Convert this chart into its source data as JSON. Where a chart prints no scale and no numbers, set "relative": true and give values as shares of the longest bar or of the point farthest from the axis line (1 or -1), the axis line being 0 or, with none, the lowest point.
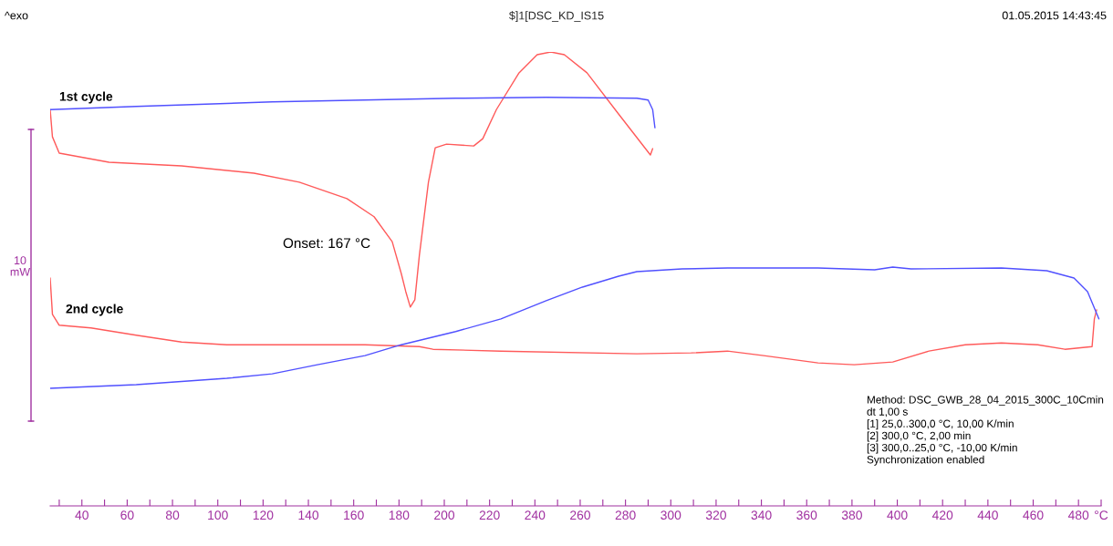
{
  "chart_data": {
    "type": "line",
    "title": "$]1[DSC_KD_IS15",
    "relative": true,
    "grid": false,
    "legend": false,
    "marker": "none",
    "line_style": "solid",
    "xlim": [
      26,
      490
    ],
    "xticks": [
      {
        "value": 30,
        "label": null
      },
      40,
      {
        "value": 50,
        "label": null
      },
      60,
      {
        "value": 70,
        "label": null
      },
      80,
      {
        "value": 90,
        "label": null
      },
      100,
      {
        "value": 110,
        "label": null
      },
      120,
      {
        "value": 130,
        "label": null
      },
      140,
      {
        "value": 150,
        "label": null
      },
      160,
      {
        "value": 170,
        "label": null
      },
      180,
      {
        "value": 190,
        "label": null
      },
      200,
      {
        "value": 210,
        "label": null
      },
      220,
      {
        "value": 230,
        "label": null
      },
      240,
      {
        "value": 250,
        "label": null
      },
      260,
      {
        "value": 270,
        "label": null
      },
      280,
      {
        "value": 290,
        "label": null
      },
      300,
      {
        "value": 310,
        "label": null
      },
      320,
      {
        "value": 330,
        "label": null
      },
      340,
      {
        "value": 350,
        "label": null
      },
      360,
      {
        "value": 370,
        "label": null
      },
      380,
      {
        "value": 390,
        "label": null
      },
      400,
      {
        "value": 410,
        "label": null
      },
      420,
      {
        "value": 430,
        "label": null
      },
      440,
      {
        "value": 450,
        "label": null
      },
      460,
      {
        "value": 470,
        "label": null
      },
      480,
      {
        "value": 490,
        "label": "°C"
      }
    ],
    "tick_labels": "x",
    "series": [
      {
        "color": "#ff5a5a",
        "x": [
          26,
          27,
          30,
          52,
          84,
          116,
          136,
          157,
          169,
          177,
          181,
          183,
          185,
          187,
          189,
          193,
          196,
          201,
          213,
          217,
          223,
          233,
          241,
          247,
          253,
          263,
          277,
          291,
          292
        ],
        "values": [
          0.873,
          0.813,
          0.777,
          0.757,
          0.749,
          0.733,
          0.713,
          0.677,
          0.637,
          0.582,
          0.512,
          0.472,
          0.438,
          0.454,
          0.552,
          0.713,
          0.789,
          0.797,
          0.793,
          0.809,
          0.873,
          0.954,
          0.994,
          1,
          0.994,
          0.954,
          0.863,
          0.773,
          0.787
        ]
      },
      {
        "color": "#5050ff",
        "x": [
          293,
          292,
          290,
          285,
          245,
          205,
          124,
          64,
          26
        ],
        "values": [
          0.833,
          0.873,
          0.894,
          0.898,
          0.9,
          0.898,
          0.89,
          0.88,
          0.873
        ]
      },
      {
        "color": "#ff5a5a",
        "x": [
          26,
          27,
          30,
          44,
          64,
          84,
          104,
          165,
          189,
          195,
          225,
          285,
          309,
          325,
          341,
          365,
          381,
          398,
          414,
          430,
          446,
          462,
          474,
          486,
          487,
          488
        ],
        "values": [
          0.502,
          0.422,
          0.398,
          0.392,
          0.376,
          0.361,
          0.355,
          0.355,
          0.351,
          0.345,
          0.341,
          0.335,
          0.337,
          0.341,
          0.331,
          0.315,
          0.311,
          0.317,
          0.341,
          0.355,
          0.359,
          0.355,
          0.345,
          0.351,
          0.412,
          0.432
        ]
      },
      {
        "color": "#5050ff",
        "x": [
          489,
          484,
          478,
          466,
          446,
          406,
          398,
          390,
          365,
          325,
          305,
          285,
          277,
          261,
          245,
          225,
          205,
          181,
          165,
          144,
          124,
          104,
          64,
          26
        ],
        "values": [
          0.412,
          0.472,
          0.502,
          0.518,
          0.524,
          0.522,
          0.526,
          0.52,
          0.524,
          0.524,
          0.522,
          0.516,
          0.506,
          0.482,
          0.452,
          0.412,
          0.384,
          0.355,
          0.331,
          0.311,
          0.291,
          0.281,
          0.267,
          0.259
        ]
      }
    ],
    "annotations": [
      "^exo",
      "01.05.2015 14:43:45",
      "1st cycle",
      "2nd cycle",
      "Onset: 167 °C",
      "10\nmW",
      "Method: DSC_GWB_28_04_2015_300C_10Cmin\ndt 1,00 s\n[1] 25,0..300,0 °C, 10,00 K/min\n[2] 300,0 °C, 2,00 min\n[3] 300,0..25,0 °C, -10,00 K/min\nSynchronization enabled"
    ]
  }
}
